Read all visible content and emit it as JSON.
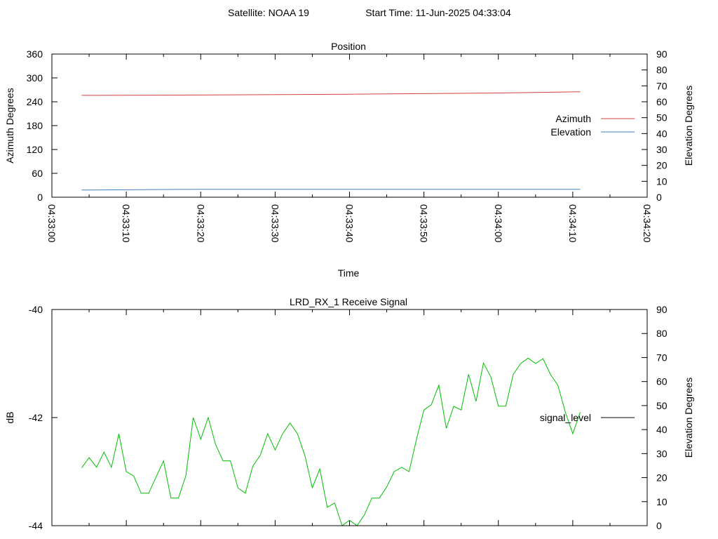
{
  "header": {
    "satellite_label": "Satellite: NOAA 19",
    "start_time_label": "Start Time: 11-Jun-2025 04:33:04"
  },
  "colors": {
    "background": "#ffffff",
    "axis": "#000000",
    "azimuth": "#d04040",
    "elevation": "#4080c0",
    "signal": "#00c000",
    "signal_legend": "#000000"
  },
  "chart_data": [
    {
      "type": "line",
      "title": "Position",
      "xlabel": "Time",
      "ylabel": "Azimuth Degrees",
      "y2label": "Elevation Degrees",
      "xticks": [
        "04:33:00",
        "04:33:10",
        "04:33:20",
        "04:33:30",
        "04:33:40",
        "04:33:50",
        "04:34:00",
        "04:34:10",
        "04:34:20"
      ],
      "xlim": [
        "04:33:00",
        "04:34:20"
      ],
      "ylim": [
        0,
        360
      ],
      "yticks": [
        "0",
        "60",
        "120",
        "180",
        "240",
        "300",
        "360"
      ],
      "y2lim": [
        0,
        90
      ],
      "y2ticks": [
        "0",
        "10",
        "20",
        "30",
        "40",
        "50",
        "60",
        "70",
        "80",
        "90"
      ],
      "legend": "right",
      "grid": false,
      "series": [
        {
          "name": "Azimuth",
          "axis": "y",
          "color": "#d04040",
          "x": [
            "04:33:04",
            "04:33:20",
            "04:33:40",
            "04:34:00",
            "04:34:11"
          ],
          "y": [
            256,
            257,
            259,
            262,
            265
          ]
        },
        {
          "name": "Elevation",
          "axis": "y2",
          "color": "#4080c0",
          "x": [
            "04:33:04",
            "04:33:20",
            "04:33:40",
            "04:34:00",
            "04:34:11"
          ],
          "y": [
            4.5,
            5,
            5,
            5,
            5
          ]
        }
      ]
    },
    {
      "type": "line",
      "title": "LRD_RX_1 Receive Signal",
      "xlabel": "",
      "ylabel": "dB",
      "y2label": "Elevation Degrees",
      "xlim": [
        "04:33:00",
        "04:34:20"
      ],
      "ylim": [
        -44,
        -40
      ],
      "yticks": [
        "-44",
        "-42",
        "-40"
      ],
      "y2lim": [
        0,
        90
      ],
      "y2ticks": [
        "0",
        "10",
        "20",
        "30",
        "40",
        "50",
        "60",
        "70",
        "80",
        "90"
      ],
      "legend": "right",
      "grid": false,
      "series": [
        {
          "name": "signal_level",
          "axis": "y",
          "color": "#00c000",
          "x": [
            "04:33:04",
            "04:33:05",
            "04:33:06",
            "04:33:07",
            "04:33:08",
            "04:33:09",
            "04:33:10",
            "04:33:11",
            "04:33:12",
            "04:33:13",
            "04:33:14",
            "04:33:15",
            "04:33:16",
            "04:33:17",
            "04:33:18",
            "04:33:19",
            "04:33:20",
            "04:33:21",
            "04:33:22",
            "04:33:23",
            "04:33:24",
            "04:33:25",
            "04:33:26",
            "04:33:27",
            "04:33:28",
            "04:33:29",
            "04:33:30",
            "04:33:31",
            "04:33:32",
            "04:33:33",
            "04:33:34",
            "04:33:35",
            "04:33:36",
            "04:33:37",
            "04:33:38",
            "04:33:39",
            "04:33:40",
            "04:33:41",
            "04:33:42",
            "04:33:43",
            "04:33:44",
            "04:33:45",
            "04:33:46",
            "04:33:47",
            "04:33:48",
            "04:33:49",
            "04:33:50",
            "04:33:51",
            "04:33:52",
            "04:33:53",
            "04:33:54",
            "04:33:55",
            "04:33:56",
            "04:33:57",
            "04:33:58",
            "04:33:59",
            "04:34:00",
            "04:34:01",
            "04:34:02",
            "04:34:03",
            "04:34:04",
            "04:34:05",
            "04:34:06",
            "04:34:07",
            "04:34:08",
            "04:34:09",
            "04:34:10",
            "04:34:11"
          ],
          "y": [
            -42.93,
            -42.74,
            -42.92,
            -42.64,
            -42.92,
            -42.3,
            -43.0,
            -43.08,
            -43.4,
            -43.4,
            -43.1,
            -42.8,
            -43.49,
            -43.49,
            -43.08,
            -42.0,
            -42.4,
            -42.0,
            -42.5,
            -42.8,
            -42.8,
            -43.3,
            -43.4,
            -42.9,
            -42.7,
            -42.3,
            -42.6,
            -42.3,
            -42.1,
            -42.3,
            -42.7,
            -43.3,
            -42.95,
            -43.66,
            -43.58,
            -44.0,
            -43.9,
            -44.0,
            -43.8,
            -43.49,
            -43.49,
            -43.28,
            -43.0,
            -42.92,
            -43.0,
            -42.4,
            -41.86,
            -41.76,
            -41.4,
            -42.2,
            -41.79,
            -41.86,
            -41.2,
            -41.7,
            -40.99,
            -41.25,
            -41.79,
            -41.79,
            -41.2,
            -41.0,
            -40.9,
            -41.0,
            -40.91,
            -41.2,
            -41.4,
            -41.9,
            -42.3,
            -41.9
          ]
        }
      ]
    }
  ]
}
